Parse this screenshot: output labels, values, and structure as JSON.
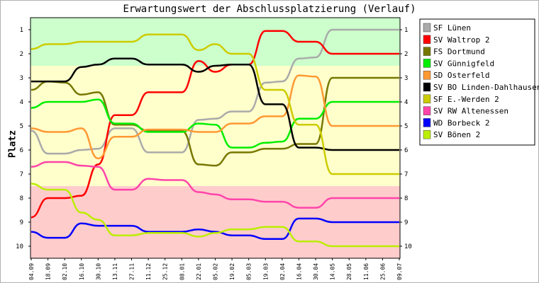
{
  "chart_data": {
    "type": "line",
    "title": "Erwartungswert der Abschlussplatzierung (Verlauf)",
    "ylabel": "Platz",
    "xlabel": "",
    "ylim": [
      0.5,
      10.5
    ],
    "y_inverted": true,
    "y_ticks": [
      "1",
      "2",
      "3",
      "4",
      "5",
      "6",
      "7",
      "8",
      "9",
      "10"
    ],
    "legend_position": "right",
    "bands": [
      {
        "from": 0.5,
        "to": 2.5,
        "color": "#ccffcc"
      },
      {
        "from": 2.5,
        "to": 7.5,
        "color": "#ffffcc"
      },
      {
        "from": 7.5,
        "to": 10.5,
        "color": "#ffcccc"
      }
    ],
    "x": [
      "04.09",
      "18.09",
      "02.10",
      "16.10",
      "30.10",
      "13.11",
      "27.11",
      "11.12",
      "25.12",
      "08.01",
      "22.01",
      "05.02",
      "19.02",
      "05.03",
      "19.03",
      "02.04",
      "16.04",
      "30.04",
      "14.05",
      "28.05",
      "11.06",
      "25.06",
      "09.07"
    ],
    "series": [
      {
        "name": "SF Lünen",
        "color": "#aaaaaa",
        "values": [
          5.2,
          6.15,
          6.15,
          6.0,
          5.95,
          5.1,
          5.1,
          6.1,
          6.1,
          6.1,
          4.75,
          4.7,
          4.4,
          4.4,
          3.2,
          3.15,
          2.2,
          2.15,
          1.0,
          1.0,
          1.0,
          1.0,
          1.0
        ]
      },
      {
        "name": "SV Waltrop 2",
        "color": "#ff0000",
        "values": [
          8.8,
          8.0,
          8.0,
          7.9,
          6.6,
          4.55,
          4.55,
          3.6,
          3.6,
          3.6,
          2.3,
          2.75,
          2.45,
          2.45,
          1.05,
          1.05,
          1.5,
          1.5,
          2.0,
          2.0,
          2.0,
          2.0,
          2.0
        ]
      },
      {
        "name": "FS Dortmund",
        "color": "#777700",
        "values": [
          3.5,
          3.15,
          3.2,
          3.7,
          3.6,
          4.95,
          4.95,
          5.2,
          5.2,
          5.2,
          6.6,
          6.65,
          6.1,
          6.1,
          5.95,
          5.95,
          5.75,
          5.75,
          3.0,
          3.0,
          3.0,
          3.0,
          3.0
        ]
      },
      {
        "name": "SV Günnigfeld",
        "color": "#00ee00",
        "values": [
          4.25,
          4.0,
          4.0,
          4.0,
          3.9,
          4.9,
          4.9,
          5.25,
          5.25,
          5.25,
          4.9,
          4.95,
          5.9,
          5.9,
          5.7,
          5.65,
          4.7,
          4.7,
          4.0,
          4.0,
          4.0,
          4.0,
          4.0
        ]
      },
      {
        "name": "SD Osterfeld",
        "color": "#ff9933",
        "values": [
          5.1,
          5.25,
          5.25,
          5.1,
          6.35,
          5.45,
          5.45,
          5.15,
          5.15,
          5.15,
          5.25,
          5.25,
          4.9,
          4.9,
          4.6,
          4.6,
          2.9,
          2.95,
          5.0,
          5.0,
          5.0,
          5.0,
          5.0
        ]
      },
      {
        "name": "SV BO Linden-Dahlhausen",
        "color": "#000000",
        "values": [
          3.15,
          3.15,
          3.15,
          2.55,
          2.45,
          2.2,
          2.2,
          2.45,
          2.45,
          2.45,
          2.75,
          2.5,
          2.45,
          2.45,
          4.1,
          4.1,
          5.9,
          5.9,
          6.0,
          6.0,
          6.0,
          6.0,
          6.0
        ]
      },
      {
        "name": "SF E.-Werden 2",
        "color": "#cccc00",
        "values": [
          1.8,
          1.6,
          1.6,
          1.5,
          1.5,
          1.5,
          1.5,
          1.2,
          1.2,
          1.2,
          1.85,
          1.6,
          2.0,
          2.0,
          3.5,
          3.5,
          4.95,
          4.95,
          7.0,
          7.0,
          7.0,
          7.0,
          7.0
        ]
      },
      {
        "name": "SV RW Altenessen",
        "color": "#ff44aa",
        "values": [
          6.7,
          6.5,
          6.5,
          6.65,
          6.7,
          7.65,
          7.65,
          7.2,
          7.25,
          7.25,
          7.75,
          7.85,
          8.05,
          8.05,
          8.15,
          8.15,
          8.4,
          8.4,
          8.0,
          8.0,
          8.0,
          8.0,
          8.0
        ]
      },
      {
        "name": "WD Borbeck 2",
        "color": "#0000ff",
        "values": [
          9.4,
          9.65,
          9.65,
          9.05,
          9.15,
          9.15,
          9.15,
          9.4,
          9.4,
          9.4,
          9.3,
          9.4,
          9.55,
          9.55,
          9.7,
          9.7,
          8.85,
          8.85,
          9.0,
          9.0,
          9.0,
          9.0,
          9.0
        ]
      },
      {
        "name": "SV Bönen 2",
        "color": "#bbee00",
        "values": [
          7.4,
          7.65,
          7.65,
          8.6,
          8.9,
          9.55,
          9.55,
          9.45,
          9.45,
          9.45,
          9.6,
          9.45,
          9.3,
          9.3,
          9.2,
          9.2,
          9.8,
          9.8,
          10.0,
          10.0,
          10.0,
          10.0,
          10.0
        ]
      }
    ]
  }
}
